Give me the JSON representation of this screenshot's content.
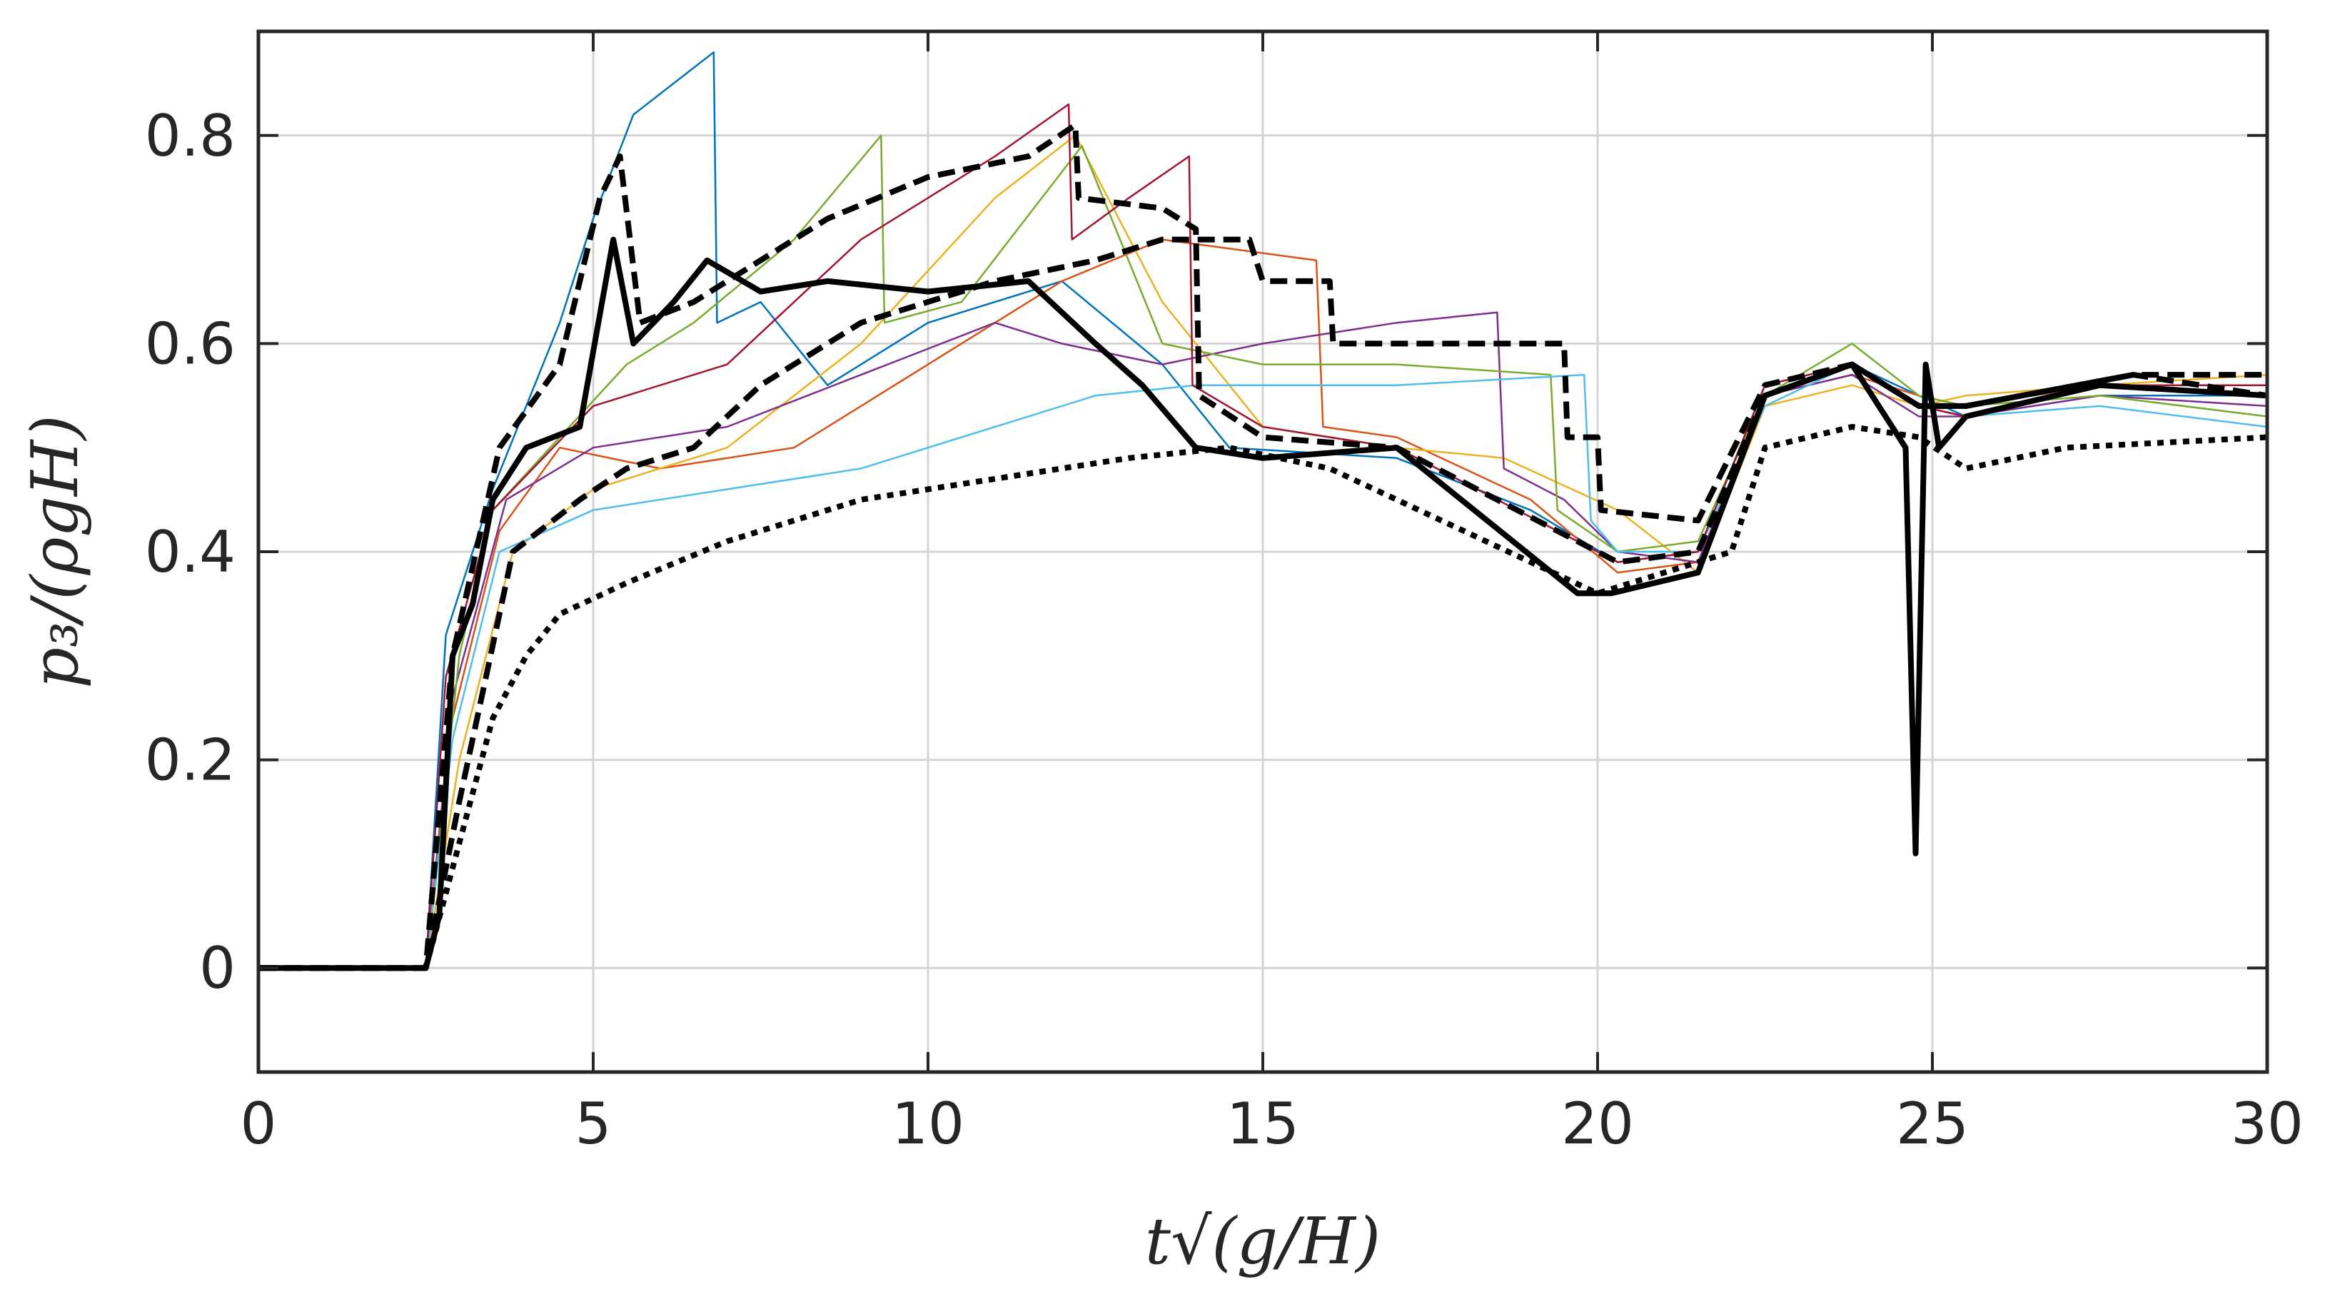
{
  "chart_data": {
    "type": "line",
    "title": "",
    "xlabel": "t√(g/H)",
    "ylabel": "p₃/(ρgH)",
    "xlim": [
      0,
      30
    ],
    "ylim": [
      -0.1,
      0.9
    ],
    "x_ticks": [
      0,
      5,
      10,
      15,
      20,
      25,
      30
    ],
    "x_tick_labels": [
      "0",
      "5",
      "10",
      "15",
      "20",
      "25",
      "30"
    ],
    "y_ticks": [
      0,
      0.2,
      0.4,
      0.6,
      0.8
    ],
    "y_tick_labels": [
      "0",
      "0.2",
      "0.4",
      "0.6",
      "0.8"
    ],
    "grid": true,
    "legend": "none",
    "colors": [
      "#0072BD",
      "#D95319",
      "#EDB120",
      "#7E2F8E",
      "#77AC30",
      "#4DBEEE",
      "#A2142F"
    ],
    "series": [
      {
        "color": "#0072BD",
        "style": "thin",
        "x": [
          0,
          2.5,
          2.8,
          3.5,
          4.5,
          5.0,
          5.6,
          6.8,
          6.85,
          7.5,
          8.5,
          10,
          12,
          13.5,
          14.5,
          17,
          19,
          20.3,
          21.5,
          22.5,
          23.8,
          24.8,
          25.5,
          27.5,
          30
        ],
        "y": [
          0,
          0,
          0.32,
          0.46,
          0.62,
          0.72,
          0.82,
          0.88,
          0.62,
          0.64,
          0.56,
          0.62,
          0.66,
          0.58,
          0.5,
          0.49,
          0.44,
          0.39,
          0.4,
          0.56,
          0.58,
          0.55,
          0.53,
          0.55,
          0.55
        ]
      },
      {
        "color": "#D95319",
        "style": "thin",
        "x": [
          0,
          2.5,
          2.9,
          3.6,
          4.5,
          6,
          8,
          10,
          12,
          13.5,
          15.8,
          15.9,
          17,
          19,
          20.3,
          21.5,
          22.5,
          23.8,
          24.8,
          25.5,
          27.5,
          30
        ],
        "y": [
          0,
          0,
          0.24,
          0.42,
          0.5,
          0.48,
          0.5,
          0.58,
          0.66,
          0.7,
          0.68,
          0.52,
          0.51,
          0.45,
          0.38,
          0.39,
          0.55,
          0.57,
          0.55,
          0.54,
          0.56,
          0.56
        ]
      },
      {
        "color": "#EDB120",
        "style": "thin",
        "x": [
          0,
          2.5,
          3.0,
          3.8,
          5,
          7,
          9,
          11,
          12.2,
          13.5,
          15,
          17,
          18.6,
          20.3,
          21.5,
          22.5,
          23.8,
          24.8,
          25.5,
          27.5,
          30
        ],
        "y": [
          0,
          0,
          0.2,
          0.4,
          0.46,
          0.5,
          0.6,
          0.74,
          0.8,
          0.64,
          0.52,
          0.5,
          0.49,
          0.44,
          0.38,
          0.54,
          0.56,
          0.54,
          0.55,
          0.56,
          0.57
        ]
      },
      {
        "color": "#7E2F8E",
        "style": "thin",
        "x": [
          0,
          2.5,
          2.9,
          3.7,
          5,
          7,
          9,
          11,
          12,
          13.5,
          15,
          17,
          18.5,
          18.6,
          19.5,
          20.3,
          21.5,
          22.5,
          23.8,
          24.8,
          25.5,
          27.5,
          30
        ],
        "y": [
          0,
          0,
          0.26,
          0.45,
          0.5,
          0.52,
          0.57,
          0.62,
          0.6,
          0.58,
          0.6,
          0.62,
          0.63,
          0.48,
          0.45,
          0.4,
          0.39,
          0.55,
          0.57,
          0.53,
          0.53,
          0.55,
          0.54
        ]
      },
      {
        "color": "#77AC30",
        "style": "thin",
        "x": [
          0,
          2.5,
          3.0,
          3.5,
          5.5,
          6.5,
          8,
          9.3,
          9.35,
          10.5,
          12.3,
          13.5,
          15,
          17,
          19.3,
          19.4,
          20.3,
          21.5,
          22.5,
          23.8,
          24.8,
          25.5,
          27.5,
          30
        ],
        "y": [
          0,
          0,
          0.3,
          0.44,
          0.58,
          0.62,
          0.7,
          0.8,
          0.62,
          0.64,
          0.79,
          0.6,
          0.58,
          0.58,
          0.57,
          0.44,
          0.4,
          0.41,
          0.55,
          0.6,
          0.55,
          0.54,
          0.55,
          0.53
        ]
      },
      {
        "color": "#4DBEEE",
        "style": "thin",
        "x": [
          0,
          2.5,
          2.9,
          3.6,
          5,
          7,
          9,
          11,
          12.5,
          14,
          15,
          17,
          19.8,
          19.9,
          20.3,
          21.5,
          22.5,
          23.8,
          24.8,
          25.5,
          27.5,
          30
        ],
        "y": [
          0,
          0,
          0.22,
          0.4,
          0.44,
          0.46,
          0.48,
          0.52,
          0.55,
          0.56,
          0.56,
          0.56,
          0.57,
          0.43,
          0.4,
          0.4,
          0.54,
          0.58,
          0.54,
          0.53,
          0.54,
          0.52
        ]
      },
      {
        "color": "#A2142F",
        "style": "thin",
        "x": [
          0,
          2.5,
          2.8,
          3.5,
          5,
          7,
          9,
          11,
          12.1,
          12.15,
          13,
          13.9,
          13.95,
          15,
          17,
          20.3,
          21.5,
          22.5,
          23.8,
          24.8,
          25.5,
          27.5,
          30
        ],
        "y": [
          0,
          0,
          0.28,
          0.44,
          0.54,
          0.58,
          0.7,
          0.78,
          0.83,
          0.7,
          0.74,
          0.78,
          0.56,
          0.52,
          0.5,
          0.39,
          0.4,
          0.56,
          0.58,
          0.54,
          0.53,
          0.56,
          0.56
        ]
      },
      {
        "color": "#000000",
        "style": "thick",
        "x": [
          0,
          2.5,
          2.7,
          2.9,
          3.2,
          3.5,
          4,
          4.8,
          5.3,
          5.6,
          6.2,
          6.7,
          7.5,
          8.5,
          10,
          11.5,
          12.5,
          13.2,
          14,
          15,
          17,
          19.7,
          20.2,
          21.5,
          22.5,
          23.8,
          24.6,
          24.75,
          24.9,
          25.1,
          25.5,
          27.5,
          30
        ],
        "y": [
          0,
          0,
          0.05,
          0.3,
          0.35,
          0.45,
          0.5,
          0.52,
          0.7,
          0.6,
          0.64,
          0.68,
          0.65,
          0.66,
          0.65,
          0.66,
          0.6,
          0.56,
          0.5,
          0.49,
          0.5,
          0.36,
          0.36,
          0.38,
          0.55,
          0.58,
          0.5,
          0.11,
          0.58,
          0.5,
          0.53,
          0.56,
          0.55
        ]
      },
      {
        "color": "#000000",
        "style": "dashed",
        "x": [
          0,
          2.5,
          2.9,
          3.6,
          4.5,
          5.1,
          5.4,
          5.7,
          6.5,
          8.5,
          10,
          11.5,
          12.2,
          12.25,
          13.5,
          14,
          14.05,
          15,
          17,
          20.3,
          21.5,
          22.5,
          23.8,
          24.8,
          25.5,
          28,
          30
        ],
        "y": [
          0,
          0,
          0.3,
          0.5,
          0.58,
          0.74,
          0.78,
          0.62,
          0.64,
          0.72,
          0.76,
          0.78,
          0.81,
          0.74,
          0.73,
          0.71,
          0.55,
          0.51,
          0.5,
          0.39,
          0.4,
          0.55,
          0.58,
          0.54,
          0.54,
          0.57,
          0.57
        ]
      },
      {
        "color": "#000000",
        "style": "dashed",
        "x": [
          0,
          2.5,
          3.0,
          3.8,
          4.8,
          5.5,
          6.5,
          7.5,
          9,
          11,
          12.5,
          13.5,
          14.8,
          15,
          16,
          16.05,
          18,
          19.5,
          19.55,
          20,
          20.05,
          21.5,
          22.5,
          23.8,
          24.8,
          25.5,
          28,
          30
        ],
        "y": [
          0,
          0,
          0.16,
          0.4,
          0.45,
          0.48,
          0.5,
          0.56,
          0.62,
          0.66,
          0.68,
          0.7,
          0.7,
          0.66,
          0.66,
          0.6,
          0.6,
          0.6,
          0.51,
          0.51,
          0.44,
          0.43,
          0.56,
          0.58,
          0.54,
          0.54,
          0.57,
          0.55
        ]
      },
      {
        "color": "#000000",
        "style": "dotted",
        "x": [
          0,
          2.5,
          3.0,
          3.5,
          4.0,
          4.5,
          5.5,
          7.0,
          9.0,
          11.0,
          13.0,
          14.5,
          16.0,
          18.0,
          20.0,
          20.5,
          22.0,
          22.5,
          23.8,
          24.8,
          25.5,
          27.0,
          30.0
        ],
        "y": [
          0,
          0,
          0.12,
          0.24,
          0.3,
          0.34,
          0.37,
          0.41,
          0.45,
          0.47,
          0.49,
          0.5,
          0.48,
          0.42,
          0.36,
          0.37,
          0.4,
          0.5,
          0.52,
          0.51,
          0.48,
          0.5,
          0.51
        ]
      }
    ]
  }
}
